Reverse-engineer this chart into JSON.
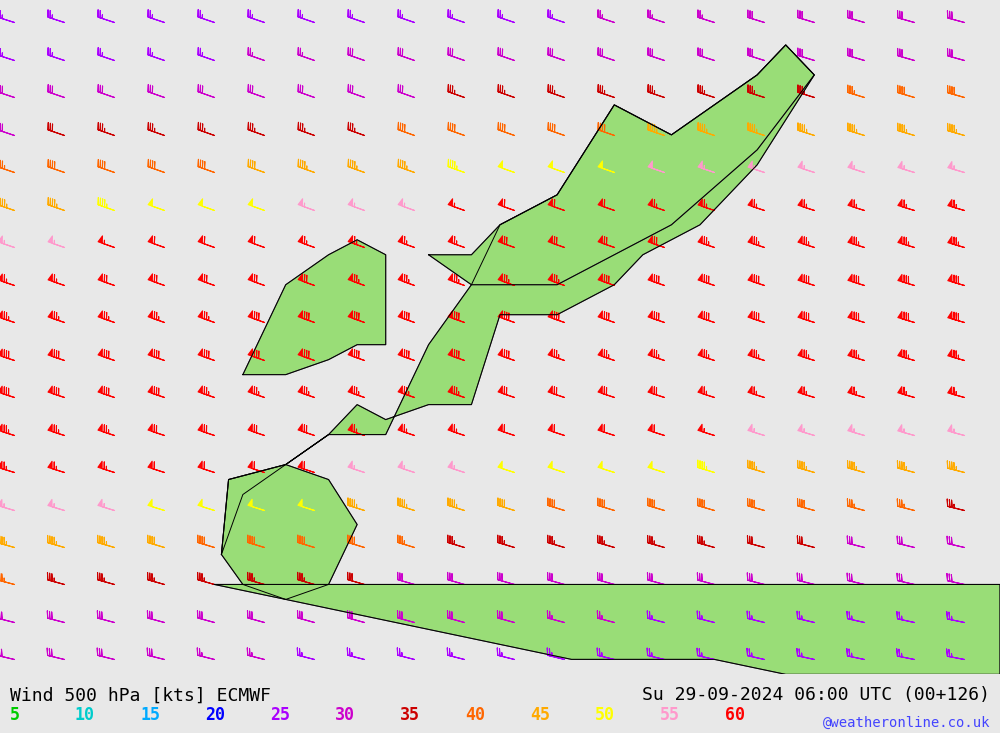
{
  "title_left": "Wind 500 hPa [kts] ECMWF",
  "title_right": "Su 29-09-2024 06:00 UTC (00+126)",
  "watermark": "@weatheronline.co.uk",
  "legend_values": [
    5,
    10,
    15,
    20,
    25,
    30,
    35,
    40,
    45,
    50,
    55,
    60
  ],
  "legend_colors": [
    "#00cc00",
    "#00cccc",
    "#00aaff",
    "#0000ff",
    "#aa00ff",
    "#cc00cc",
    "#cc0000",
    "#ff6600",
    "#ffaa00",
    "#ffff00",
    "#ff99cc",
    "#ff0000"
  ],
  "bg_color": "#e8e8e8",
  "map_land_color": "#99dd77",
  "map_water_color": "#e8e8e8",
  "title_fontsize": 13,
  "watermark_color": "#4444ff",
  "wind_speed_colors": {
    "5": "#00cc00",
    "10": "#00cccc",
    "15": "#00aaff",
    "20": "#0000ff",
    "25": "#aa00ff",
    "30": "#cc00cc",
    "35": "#cc0000",
    "40": "#ff6600",
    "45": "#ffaa00",
    "50": "#ffff00",
    "55": "#ff99cc",
    "60": "#ff0000"
  }
}
